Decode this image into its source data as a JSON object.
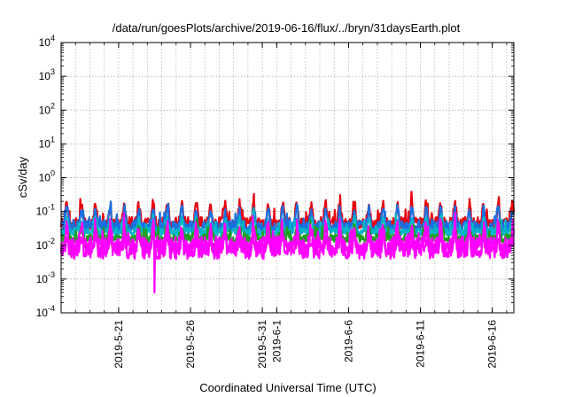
{
  "chart_data": {
    "type": "line",
    "title": "/data/run/goesPlots/archive/2019-06-16/flux/../bryn/31daysEarth.plot",
    "xlabel": "Coordinated Universal Time (UTC)",
    "ylabel": "cSv/day",
    "yscale": "log",
    "ylim": [
      0.0001,
      10000
    ],
    "xlim": [
      "2019-05-17",
      "2019-06-17 12:00"
    ],
    "grid": true,
    "y_ticks": [
      {
        "value": 0.0001,
        "base": "10",
        "exp": "-4"
      },
      {
        "value": 0.001,
        "base": "10",
        "exp": "-3"
      },
      {
        "value": 0.01,
        "base": "10",
        "exp": "-2"
      },
      {
        "value": 0.1,
        "base": "10",
        "exp": "-1"
      },
      {
        "value": 1,
        "base": "10",
        "exp": "0"
      },
      {
        "value": 10,
        "base": "10",
        "exp": "1"
      },
      {
        "value": 100,
        "base": "10",
        "exp": "2"
      },
      {
        "value": 1000,
        "base": "10",
        "exp": "3"
      },
      {
        "value": 10000,
        "base": "10",
        "exp": "4"
      }
    ],
    "x_ticks": [
      {
        "date": "2019-05-21",
        "label": "2019-5-21"
      },
      {
        "date": "2019-05-26",
        "label": "2019-5-26"
      },
      {
        "date": "2019-05-31",
        "label": "2019-5-31"
      },
      {
        "date": "2019-06-01",
        "label": "2019-6-1"
      },
      {
        "date": "2019-06-06",
        "label": "2019-6-6"
      },
      {
        "date": "2019-06-11",
        "label": "2019-6-11"
      },
      {
        "date": "2019-06-16",
        "label": "2019-6-16"
      }
    ],
    "series": [
      {
        "color": "#e8000b",
        "base": 0.045,
        "amp": 0.55,
        "noise": 0.18
      },
      {
        "color": "#1a6fdf",
        "base": 0.035,
        "amp": 0.5,
        "noise": 0.18
      },
      {
        "color": "#00b5c8",
        "base": 0.025,
        "amp": 0.35,
        "noise": 0.12
      },
      {
        "color": "#20a020",
        "base": 0.016,
        "amp": 0.3,
        "noise": 0.12
      },
      {
        "color": "#ff00ff",
        "base": 0.009,
        "amp": 0.55,
        "noise": 0.3
      },
      {
        "color": "#ff00ff",
        "base": 0.007,
        "amp": 0.4,
        "noise": 0.25
      }
    ],
    "events": [
      {
        "date": "2019-05-23 12:00",
        "series": 4,
        "value": 0.0004
      }
    ]
  }
}
